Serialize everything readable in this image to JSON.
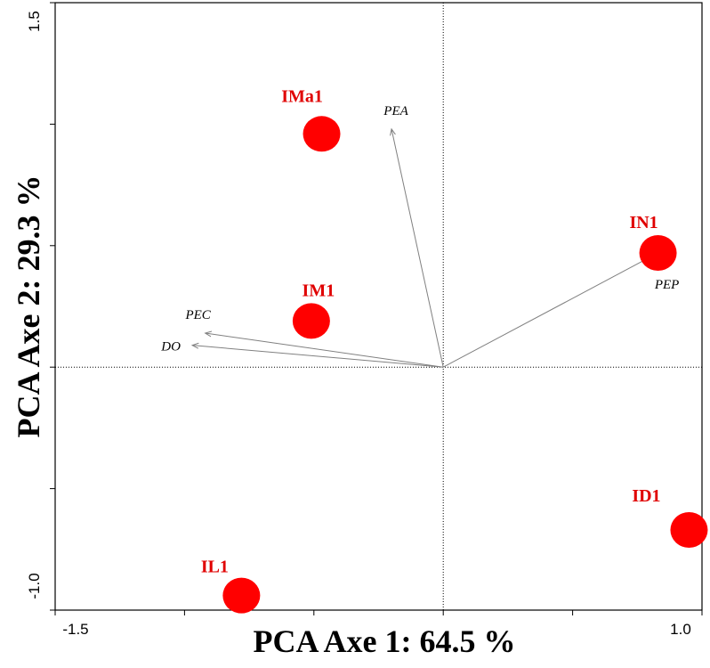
{
  "chart_data": {
    "type": "scatter",
    "title": "",
    "xlabel": "PCA Axe 1: 64.5 %",
    "ylabel": "PCA Axe 2: 29.3 %",
    "xlim": [
      -1.5,
      1.0
    ],
    "ylim": [
      -1.0,
      1.5
    ],
    "x_tick_labels": [
      "-1.5",
      "1.0"
    ],
    "y_tick_labels": [
      "1.5",
      "-1.0"
    ],
    "x_minor_ticks": [
      -1.0,
      -0.5,
      0.0,
      0.5
    ],
    "y_minor_ticks": [
      -0.5,
      0.0,
      0.5,
      1.0
    ],
    "origin_lines": true,
    "sites": [
      {
        "label": "IMa1",
        "x": -0.47,
        "y": 0.96
      },
      {
        "label": "IN1",
        "x": 0.83,
        "y": 0.47
      },
      {
        "label": "IM1",
        "x": -0.51,
        "y": 0.19
      },
      {
        "label": "ID1",
        "x": 0.95,
        "y": -0.67
      },
      {
        "label": "IL1",
        "x": -0.78,
        "y": -0.94
      }
    ],
    "variables": [
      {
        "label": "PEA",
        "x": -0.2,
        "y": 0.98
      },
      {
        "label": "PEP",
        "x": 0.83,
        "y": 0.47
      },
      {
        "label": "PEC",
        "x": -0.92,
        "y": 0.14
      },
      {
        "label": "DO",
        "x": -0.97,
        "y": 0.09
      }
    ],
    "colors": {
      "site": "#ff0000",
      "site_label": "#e00000",
      "arrow": "#808080"
    }
  }
}
